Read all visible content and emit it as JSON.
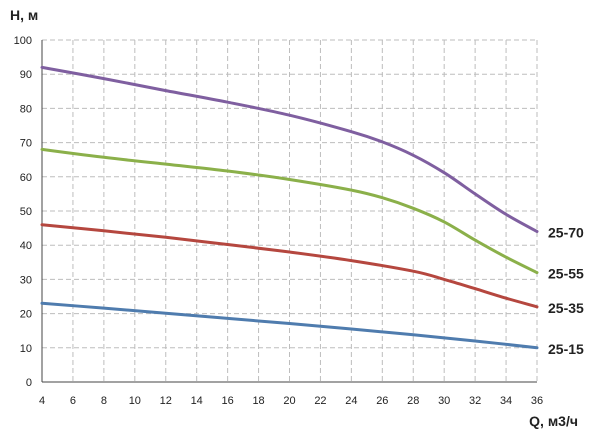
{
  "chart_data": {
    "type": "line",
    "xlabel": "Q, м3/ч",
    "ylabel": "H, м",
    "xlim": [
      4,
      36
    ],
    "ylim": [
      0,
      100
    ],
    "xticks": [
      4,
      6,
      8,
      10,
      12,
      14,
      16,
      18,
      20,
      22,
      24,
      26,
      28,
      30,
      32,
      34,
      36
    ],
    "yticks": [
      0,
      10,
      20,
      30,
      40,
      50,
      60,
      70,
      80,
      90,
      100
    ],
    "grid": "dashed",
    "series": [
      {
        "name": "25-70",
        "color": "#7f5fa0",
        "x": [
          4,
          8,
          12,
          16,
          20,
          24,
          26,
          28,
          30,
          32,
          34,
          36
        ],
        "y": [
          92,
          88.7,
          85.2,
          81.8,
          78,
          73.2,
          70.2,
          66.3,
          61.2,
          55,
          49,
          44
        ]
      },
      {
        "name": "25-55",
        "color": "#8bb04a",
        "x": [
          4,
          8,
          12,
          16,
          20,
          24,
          26,
          28,
          30,
          32,
          34,
          36
        ],
        "y": [
          68,
          65.7,
          63.7,
          61.7,
          59.2,
          56.1,
          53.9,
          50.8,
          46.8,
          41.5,
          36.5,
          32
        ]
      },
      {
        "name": "25-35",
        "color": "#b5473f",
        "x": [
          4,
          8,
          12,
          16,
          20,
          24,
          28,
          30,
          32,
          34,
          36
        ],
        "y": [
          46,
          44.2,
          42.3,
          40.2,
          38,
          35.5,
          32.4,
          30,
          27.3,
          24.5,
          22
        ]
      },
      {
        "name": "25-15",
        "color": "#4f7cae",
        "x": [
          4,
          8,
          12,
          16,
          20,
          24,
          28,
          32,
          36
        ],
        "y": [
          23,
          21.6,
          20.1,
          18.6,
          17.1,
          15.5,
          13.8,
          12,
          10
        ]
      }
    ]
  }
}
